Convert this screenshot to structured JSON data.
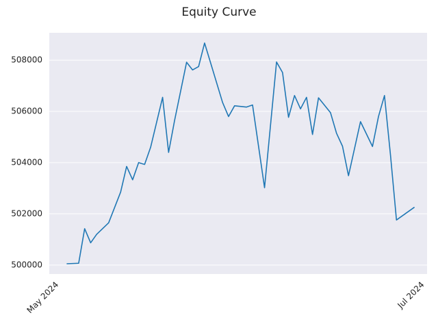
{
  "chart_data": {
    "type": "line",
    "title": "Equity Curve",
    "x": [
      2,
      4,
      5,
      6,
      7,
      9,
      11,
      12,
      13,
      14,
      15,
      16,
      18,
      19,
      20,
      22,
      23,
      24,
      25,
      26,
      28,
      29,
      30,
      32,
      33,
      35,
      37,
      38,
      39,
      40,
      41,
      42,
      43,
      44,
      46,
      47,
      48,
      49,
      51,
      53,
      54,
      55,
      56,
      57,
      60
    ],
    "series": [
      {
        "color": "#1f77b4",
        "values": [
          500050,
          500070,
          501420,
          500870,
          501200,
          501650,
          502850,
          503850,
          503330,
          504000,
          503930,
          504600,
          506550,
          504400,
          505650,
          507920,
          507620,
          507750,
          508670,
          507900,
          506350,
          505800,
          506220,
          506170,
          506250,
          503020,
          507930,
          507520,
          505770,
          506620,
          506100,
          506550,
          505100,
          506530,
          505950,
          505150,
          504640,
          503490,
          505600,
          504630,
          505800,
          506620,
          504300,
          501760,
          502260
        ]
      }
    ],
    "xlim": [
      -0.9,
      62.1
    ],
    "xticks": [
      {
        "value": 0,
        "label": "May 2024"
      },
      {
        "value": 61,
        "label": "Jul 2024"
      }
    ],
    "ylim": [
      499650,
      509070
    ],
    "yticks": [
      500000,
      502000,
      504000,
      506000,
      508000
    ],
    "grid": true
  }
}
